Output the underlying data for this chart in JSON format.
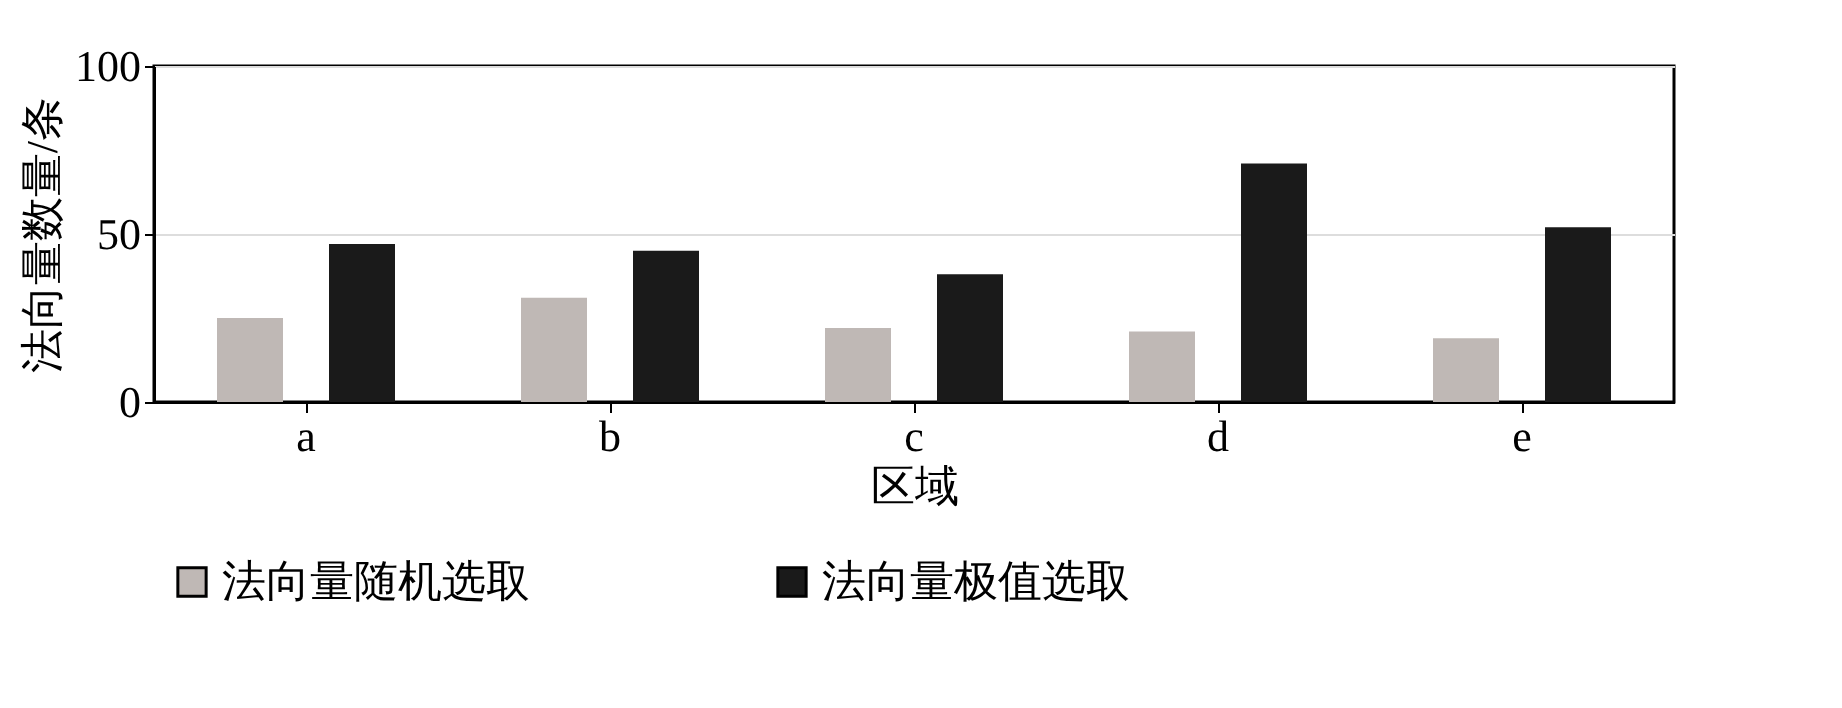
{
  "chart_data": {
    "type": "bar",
    "xlabel": "区域",
    "ylabel": "法向量数量/条",
    "categories": [
      "a",
      "b",
      "c",
      "d",
      "e"
    ],
    "series": [
      {
        "name": "法向量随机选取",
        "color": "#bfb8b5",
        "values": [
          25,
          31,
          22,
          21,
          19
        ]
      },
      {
        "name": "法向量极值选取",
        "color": "#1a1a1a",
        "values": [
          47,
          45,
          38,
          71,
          52
        ]
      }
    ],
    "ylim": [
      0,
      100
    ],
    "yticks": [
      0,
      50,
      100
    ],
    "grid": "y",
    "legend": "bottom"
  }
}
